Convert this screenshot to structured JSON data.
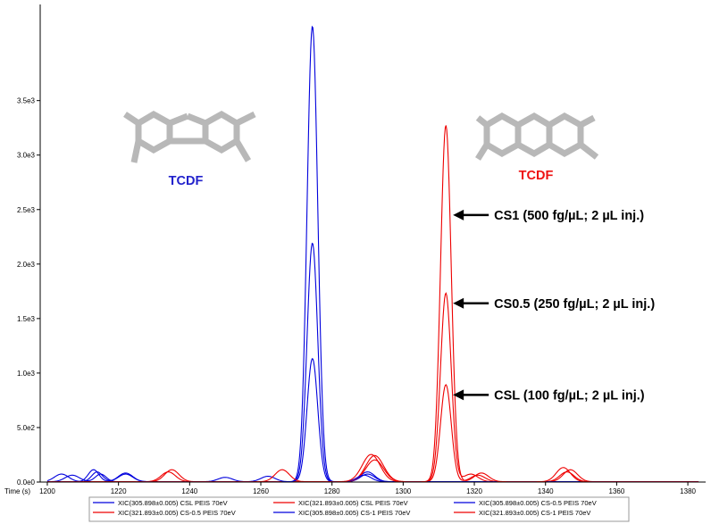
{
  "chart_data": {
    "type": "line",
    "xlabel": "Time (s)",
    "xlim": [
      1198,
      1385
    ],
    "ylim": [
      0,
      4300
    ],
    "x_ticks": [
      "1200",
      "1220",
      "1240",
      "1260",
      "1280",
      "1300",
      "1320",
      "1340",
      "1360",
      "1380"
    ],
    "y_ticks": [
      "0.0e0",
      "5.0e2",
      "1.0e3",
      "1.5e3",
      "2.0e3",
      "2.5e3",
      "3.0e3",
      "3.5e3"
    ],
    "series": [
      {
        "name": "XIC(305.898±0.005) CSL PEIS 70eV",
        "color": "#0000dd",
        "peaks": [
          [
            1274.5,
            1130,
            1.5
          ],
          [
            1290,
            90,
            2.0
          ],
          [
            1214,
            90,
            1.5
          ],
          [
            1204,
            70,
            2.0
          ],
          [
            1222,
            70,
            2.0
          ]
        ]
      },
      {
        "name": "XIC(321.893±0.005) CSL PEIS 70eV",
        "color": "#ee0000",
        "peaks": [
          [
            1312,
            890,
            1.5
          ],
          [
            1292,
            200,
            2.5
          ],
          [
            1321,
            60,
            2.0
          ],
          [
            1346,
            90,
            2.0
          ],
          [
            1234,
            90,
            2.0
          ]
        ]
      },
      {
        "name": "XIC(305.898±0.005) CS-0.5 PEIS 70eV",
        "color": "#0000dd",
        "peaks": [
          [
            1274.5,
            2190,
            1.5
          ],
          [
            1290,
            70,
            2.0
          ],
          [
            1215,
            70,
            1.5
          ],
          [
            1207,
            60,
            2.0
          ],
          [
            1250,
            40,
            2.0
          ]
        ]
      },
      {
        "name": "XIC(321.893±0.005) CS-0.5 PEIS 70eV",
        "color": "#ee0000",
        "peaks": [
          [
            1312,
            1730,
            1.5
          ],
          [
            1292,
            240,
            2.5
          ],
          [
            1319,
            70,
            2.0
          ],
          [
            1347,
            110,
            2.0
          ],
          [
            1235,
            110,
            2.0
          ]
        ]
      },
      {
        "name": "XIC(305.898±0.005) CS-1 PEIS 70eV",
        "color": "#0000dd",
        "peaks": [
          [
            1274.5,
            4180,
            1.5
          ],
          [
            1289,
            60,
            2.0
          ],
          [
            1213,
            110,
            1.5
          ],
          [
            1222,
            80,
            2.0
          ],
          [
            1262,
            50,
            2.0
          ]
        ]
      },
      {
        "name": "XIC(321.893±0.005) CS-1 PEIS 70eV",
        "color": "#ee0000",
        "peaks": [
          [
            1312,
            3270,
            1.5
          ],
          [
            1291,
            250,
            2.5
          ],
          [
            1322,
            80,
            2.0
          ],
          [
            1345,
            130,
            2.0
          ],
          [
            1266,
            110,
            2.0
          ]
        ]
      }
    ],
    "annotations": [
      {
        "text": "TCDF",
        "color": "#2222cc"
      },
      {
        "text": "TCDF",
        "color": "#ee1111"
      },
      {
        "text": "CS1 (500 fg/µL; 2 µL inj.)",
        "x": 1312.5,
        "y": 2450
      },
      {
        "text": "CS0.5 (250 fg/µL; 2 µL inj.)",
        "x": 1312.5,
        "y": 1640
      },
      {
        "text": "CSL (100 fg/µL; 2 µL inj.)",
        "x": 1312.5,
        "y": 800
      }
    ],
    "legend_position": "bottom",
    "grid": false
  }
}
